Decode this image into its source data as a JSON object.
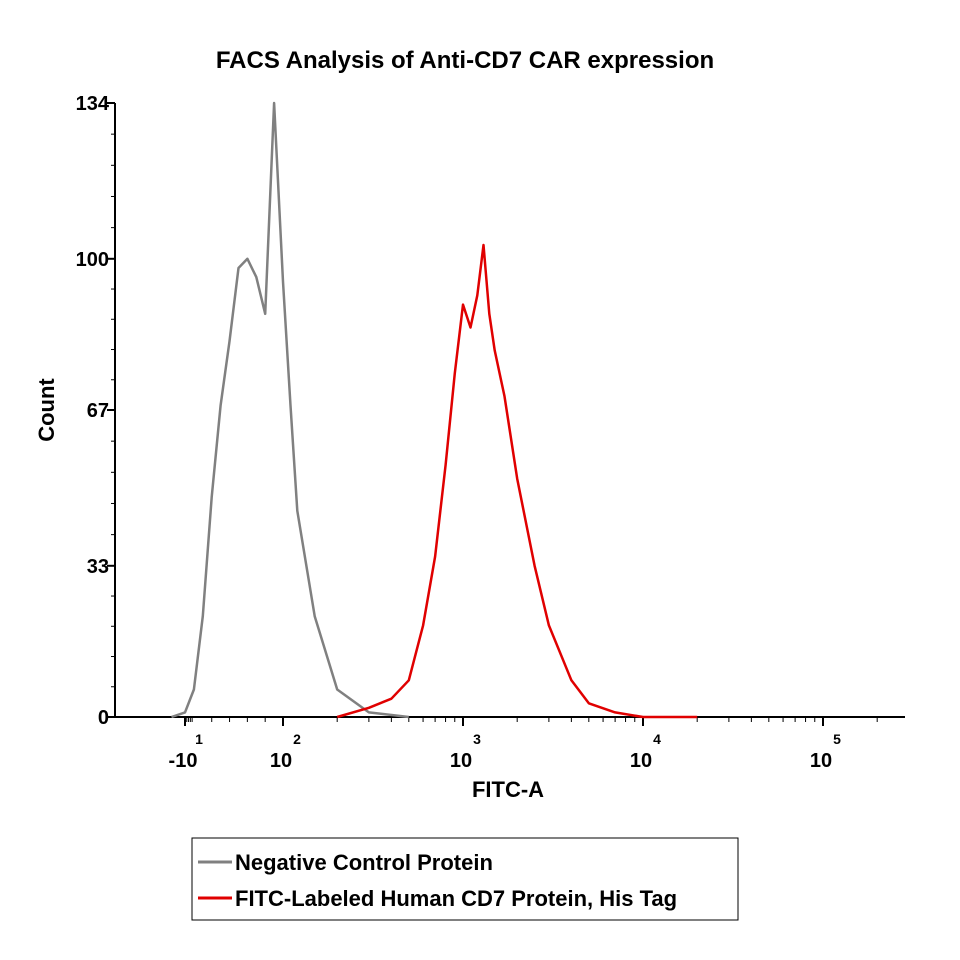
{
  "chart_data": {
    "type": "line",
    "title": "FACS Analysis of Anti-CD7 CAR expression",
    "xlabel": "FITC-A",
    "ylabel": "Count",
    "ylim": [
      0,
      134
    ],
    "y_ticks": [
      {
        "value": 0,
        "label": "0"
      },
      {
        "value": 33,
        "label": "33"
      },
      {
        "value": 67,
        "label": "67"
      },
      {
        "value": 100,
        "label": "100"
      },
      {
        "value": 134,
        "label": "134"
      }
    ],
    "x_scale": "biexponential",
    "x_ticks": [
      {
        "base": "-10",
        "exp": "1",
        "value": -10
      },
      {
        "base": "10",
        "exp": "2",
        "value": 100
      },
      {
        "base": "10",
        "exp": "3",
        "value": 1000
      },
      {
        "base": "10",
        "exp": "4",
        "value": 10000
      },
      {
        "base": "10",
        "exp": "5",
        "value": 100000
      }
    ],
    "grid": false,
    "legend_position": "bottom",
    "series": [
      {
        "name": "Negative Control Protein",
        "color": "#808080",
        "x": [
          -25,
          -10,
          0,
          10,
          20,
          30,
          40,
          50,
          60,
          70,
          80,
          90,
          100,
          110,
          120,
          150,
          200,
          300,
          500
        ],
        "y": [
          0,
          1,
          6,
          22,
          48,
          68,
          82,
          98,
          100,
          96,
          88,
          134,
          95,
          68,
          45,
          22,
          6,
          1,
          0
        ]
      },
      {
        "name": "FITC-Labeled Human CD7 Protein, His Tag",
        "color": "#e00000",
        "x": [
          200,
          300,
          400,
          500,
          600,
          700,
          800,
          900,
          1000,
          1100,
          1200,
          1300,
          1400,
          1500,
          1700,
          2000,
          2500,
          3000,
          4000,
          5000,
          7000,
          10000,
          20000
        ],
        "y": [
          0,
          2,
          4,
          8,
          20,
          35,
          55,
          75,
          90,
          85,
          92,
          103,
          88,
          80,
          70,
          52,
          33,
          20,
          8,
          3,
          1,
          0,
          0
        ]
      }
    ]
  }
}
